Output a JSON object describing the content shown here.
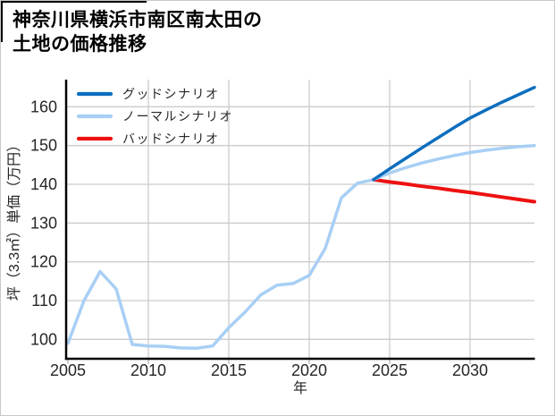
{
  "window": {
    "background": "#ffffff",
    "border_color": "#c9c9c9"
  },
  "title": {
    "line1": "神奈川県横浜市南区南太田の",
    "line2": "土地の価格推移"
  },
  "colors": {
    "grid": "#cccccc",
    "axis": "#000000",
    "tick_text": "#262626",
    "legend_text": "#262626",
    "good": "#0d6ebe",
    "normal": "#a8cff5",
    "bad": "#ee1111"
  },
  "chart_data": {
    "type": "line",
    "title": "神奈川県横浜市南区南太田の土地の価格推移",
    "xlabel": "年",
    "ylabel": "坪（3.3㎡）単価（万円）",
    "xlim": [
      2005,
      2034
    ],
    "ylim": [
      95,
      167
    ],
    "x_ticks": [
      2005,
      2010,
      2015,
      2020,
      2025,
      2030
    ],
    "y_ticks": [
      100,
      110,
      120,
      130,
      140,
      150,
      160
    ],
    "grid": true,
    "legend_position": "upper-left",
    "series": [
      {
        "name": "グッドシナリオ",
        "role": "good-scenario",
        "color": "#0d6ebe",
        "x": [
          2024,
          2025,
          2026,
          2027,
          2028,
          2029,
          2030,
          2031,
          2032,
          2033,
          2034
        ],
        "values": [
          141.2,
          144,
          146.7,
          149.4,
          152,
          154.6,
          157.1,
          159.2,
          161.2,
          163.1,
          165
        ]
      },
      {
        "name": "ノーマルシナリオ",
        "role": "normal-scenario-with-history",
        "color": "#a8cff5",
        "x": [
          2005,
          2006,
          2007,
          2008,
          2009,
          2010,
          2011,
          2012,
          2013,
          2014,
          2015,
          2016,
          2017,
          2018,
          2019,
          2020,
          2021,
          2022,
          2023,
          2024,
          2025,
          2026,
          2027,
          2028,
          2029,
          2030,
          2031,
          2032,
          2033,
          2034
        ],
        "values": [
          99,
          110,
          117.5,
          113,
          98.7,
          98.3,
          98.2,
          97.8,
          97.7,
          98.3,
          103,
          107,
          111.5,
          114,
          114.4,
          116.5,
          123.5,
          136.5,
          140.3,
          141.2,
          142.9,
          144.3,
          145.5,
          146.5,
          147.4,
          148.2,
          148.8,
          149.3,
          149.7,
          150
        ]
      },
      {
        "name": "バッドシナリオ",
        "role": "bad-scenario",
        "color": "#ee1111",
        "x": [
          2024,
          2025,
          2026,
          2027,
          2028,
          2029,
          2030,
          2031,
          2032,
          2033,
          2034
        ],
        "values": [
          141.2,
          140.6,
          140.1,
          139.5,
          139,
          138.4,
          137.9,
          137.3,
          136.7,
          136.1,
          135.5
        ]
      }
    ]
  }
}
